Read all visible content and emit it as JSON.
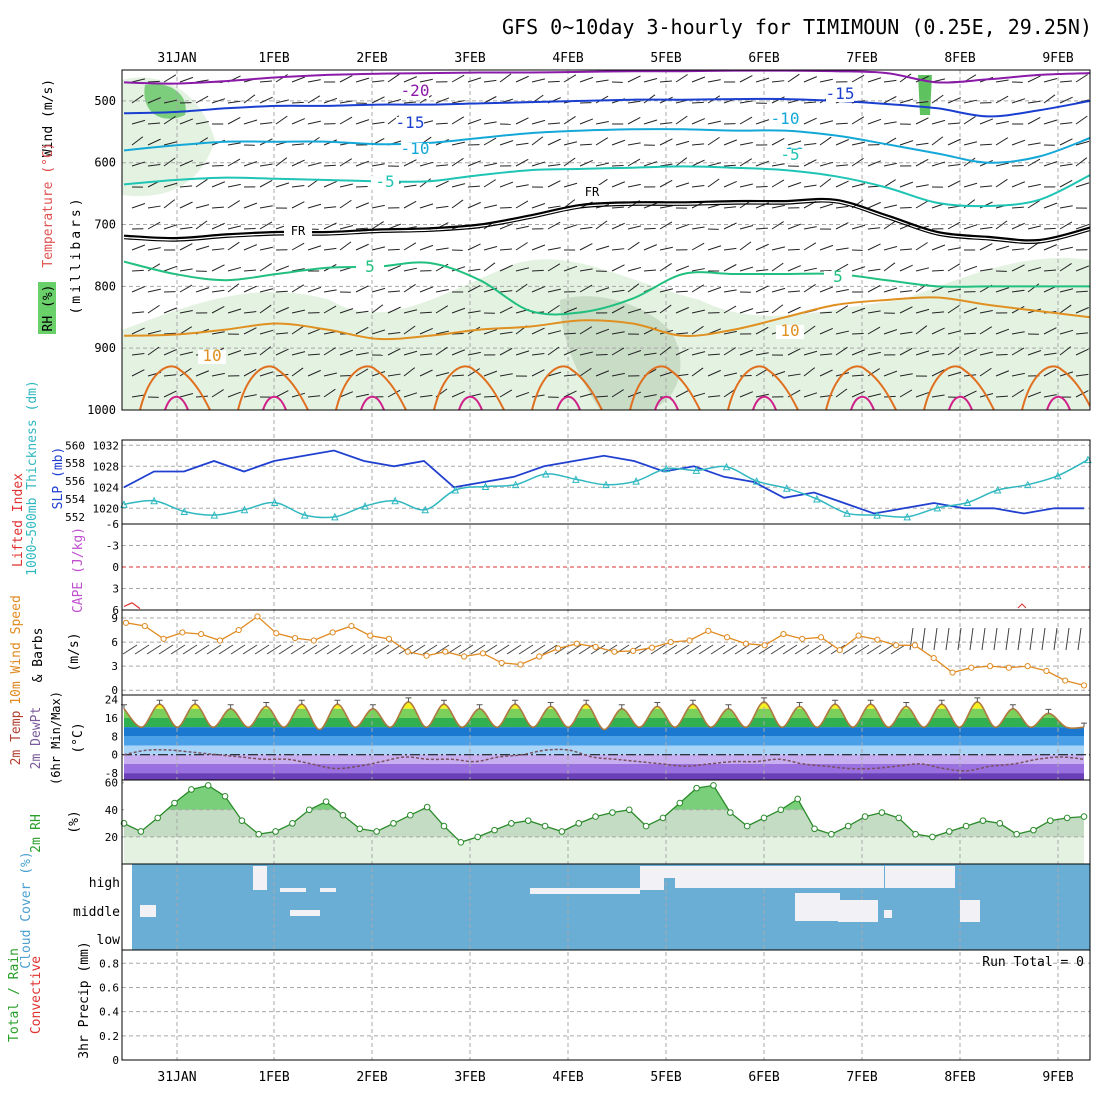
{
  "header": {
    "title": "GFS 0~10day 3-hourly for TIMIMOUN (0.25E, 29.25N)"
  },
  "dates": [
    "31JAN",
    "1FEB",
    "2FEB",
    "3FEB",
    "4FEB",
    "5FEB",
    "6FEB",
    "7FEB",
    "8FEB",
    "9FEB"
  ],
  "chart_data": [
    {
      "type": "line",
      "title": "Upper air cross-section",
      "ylabel": "(millibars)",
      "ylabel_parts": [
        "Wind (m/s)",
        "Temperature (°C)",
        "RH (%)"
      ],
      "yticks": [
        500,
        600,
        700,
        800,
        900,
        1000
      ],
      "ylim": [
        1000,
        450
      ],
      "contour_labels": [
        "-20",
        "-15",
        "-15",
        "-10",
        "-10",
        "-10",
        "-5",
        "-5",
        "FR",
        "FR",
        "5",
        "5",
        "10",
        "10"
      ],
      "series": [
        {
          "name": "-20",
          "color": "#8a1aa8",
          "values": [
            470,
            472,
            468,
            462,
            458,
            456,
            455,
            454,
            454,
            453,
            452,
            452,
            451,
            451,
            452,
            455,
            470,
            465,
            458,
            455
          ]
        },
        {
          "name": "-15",
          "color": "#1a3fd0",
          "values": [
            520,
            518,
            512,
            508,
            508,
            506,
            506,
            504,
            502,
            500,
            498,
            498,
            497,
            497,
            500,
            505,
            512,
            525,
            515,
            500
          ]
        },
        {
          "name": "-10",
          "color": "#14a8d8",
          "values": [
            580,
            572,
            566,
            566,
            566,
            570,
            568,
            560,
            552,
            548,
            546,
            546,
            548,
            548,
            556,
            570,
            585,
            600,
            590,
            560
          ]
        },
        {
          "name": "-5",
          "color": "#1ec4b4",
          "values": [
            635,
            628,
            624,
            626,
            628,
            630,
            630,
            620,
            612,
            610,
            608,
            606,
            608,
            612,
            622,
            640,
            665,
            670,
            660,
            620
          ]
        },
        {
          "name": "FR",
          "color": "#000000",
          "values": [
            718,
            722,
            716,
            712,
            712,
            708,
            706,
            700,
            685,
            668,
            664,
            664,
            662,
            662,
            660,
            685,
            712,
            720,
            725,
            705
          ]
        },
        {
          "name": "5",
          "color": "#22c080",
          "values": [
            760,
            780,
            790,
            780,
            770,
            768,
            762,
            790,
            840,
            842,
            820,
            780,
            780,
            780,
            780,
            790,
            800,
            800,
            800,
            800
          ]
        },
        {
          "name": "10",
          "color": "#e09020",
          "values": [
            880,
            878,
            870,
            860,
            870,
            885,
            880,
            870,
            865,
            855,
            860,
            880,
            870,
            850,
            830,
            822,
            818,
            830,
            840,
            850
          ]
        }
      ]
    },
    {
      "type": "line",
      "title": "Thickness and SLP",
      "ylabel_left": "1000~500mb Thickness (dm)",
      "ylabel_right": "SLP (mb)",
      "yticks_left": [
        552,
        554,
        556,
        558,
        560
      ],
      "yticks_right": [
        1020,
        1024,
        1028,
        1032
      ],
      "ylim_right": [
        1017,
        1033
      ],
      "series": [
        {
          "name": "SLP",
          "color": "#2040d0",
          "values": [
            1024,
            1027,
            1027,
            1029,
            1027,
            1029,
            1030,
            1031,
            1029,
            1028,
            1029,
            1024,
            1025,
            1026,
            1028,
            1029,
            1030,
            1029,
            1027,
            1028,
            1026,
            1025,
            1022,
            1023,
            1021,
            1019,
            1020,
            1021,
            1020,
            1020,
            1019,
            1020,
            1020
          ]
        },
        {
          "name": "Thickness",
          "color": "#30b8c0",
          "values": [
            553.4,
            553.8,
            552.6,
            552.2,
            552.8,
            553.6,
            552.2,
            552.0,
            553.2,
            553.8,
            552.8,
            555.0,
            555.4,
            555.6,
            556.8,
            556.2,
            555.6,
            556.0,
            557.4,
            557.2,
            557.6,
            556.0,
            555.2,
            554.0,
            552.4,
            552.2,
            552.0,
            553.0,
            553.6,
            555.0,
            555.6,
            556.6,
            558.4
          ]
        }
      ]
    },
    {
      "type": "line",
      "title": "CAPE and Lifted Index",
      "ylabel_parts": [
        "Lifted Index",
        "CAPE (J/kg)"
      ],
      "yticks": [
        "-6",
        "-3",
        "0",
        "3",
        "6"
      ],
      "ylim": [
        -6,
        6
      ],
      "series": [
        {
          "name": "Lifted Index",
          "color": "#e03030",
          "values": [
            5.5,
            5.0,
            5.8
          ]
        }
      ]
    },
    {
      "type": "line",
      "title": "10m Wind Speed & Barbs",
      "ylabel_parts": [
        "10m Wind Speed",
        "& Barbs",
        "(m/s)"
      ],
      "yticks": [
        0,
        3,
        6,
        9
      ],
      "ylim": [
        0,
        10
      ],
      "series": [
        {
          "name": "Speed",
          "color": "#e08a20",
          "values": [
            8.4,
            8.0,
            6.4,
            7.2,
            7.0,
            6.2,
            7.5,
            9.2,
            7.1,
            6.5,
            6.2,
            7.2,
            8.0,
            6.8,
            6.4,
            4.8,
            4.3,
            4.8,
            4.2,
            4.6,
            3.4,
            3.2,
            4.2,
            5.2,
            5.8,
            5.4,
            4.8,
            4.9,
            5.3,
            6.0,
            6.2,
            7.4,
            6.6,
            5.8,
            5.6,
            7.0,
            6.4,
            6.6,
            5.0,
            6.8,
            6.3,
            5.6,
            5.6,
            4.0,
            2.2,
            2.8,
            3.0,
            2.8,
            3.0,
            2.4,
            1.2,
            0.6
          ]
        }
      ]
    },
    {
      "type": "area",
      "title": "2m Temp and DewPt",
      "ylabel_parts": [
        "2m Temp",
        "2m DewPt",
        "(6hr Min/Max)",
        "(°C)"
      ],
      "yticks": [
        -8,
        0,
        8,
        16,
        24
      ],
      "ylim": [
        -11,
        26
      ],
      "series": [
        {
          "name": "2m Temp",
          "color": "#b07840",
          "values": [
            20,
            12,
            22,
            12,
            22,
            12,
            20,
            12,
            21,
            12,
            22,
            11,
            22,
            12,
            20,
            12,
            23,
            12,
            22,
            12,
            20,
            12,
            22,
            12,
            21,
            12,
            22,
            11,
            20,
            12,
            21,
            12,
            22,
            12,
            20,
            12,
            23,
            12,
            21,
            12,
            22,
            12,
            22,
            12,
            21,
            12,
            22,
            12,
            23,
            12,
            20,
            12,
            18,
            12,
            12
          ]
        },
        {
          "name": "2m DewPt",
          "color": "#7a5a9a",
          "values": [
            0,
            2,
            2,
            1,
            0,
            -1,
            -2,
            -2,
            -4,
            -6,
            -5,
            -3,
            -1,
            -2,
            -2,
            -3,
            -1,
            0,
            2,
            2,
            -1,
            -2,
            -3,
            -4,
            -5,
            -4,
            -3,
            -3,
            -2,
            -4,
            -5,
            -6,
            -6,
            -5,
            -4,
            -6,
            -7,
            -5,
            -4,
            -2,
            -1,
            -2
          ]
        }
      ]
    },
    {
      "type": "area",
      "title": "2m RH",
      "ylabel": "2m RH (%)",
      "yticks": [
        20,
        40,
        60
      ],
      "ylim": [
        0,
        62
      ],
      "series": [
        {
          "name": "2m RH",
          "color": "#2a8a2a",
          "values": [
            30,
            24,
            34,
            45,
            55,
            58,
            50,
            32,
            22,
            24,
            30,
            40,
            46,
            36,
            26,
            24,
            30,
            36,
            42,
            28,
            16,
            20,
            25,
            30,
            32,
            28,
            24,
            30,
            35,
            38,
            40,
            28,
            34,
            45,
            56,
            58,
            38,
            28,
            34,
            40,
            48,
            26,
            22,
            28,
            35,
            38,
            34,
            22,
            20,
            24,
            28,
            32,
            30,
            22,
            25,
            32,
            34,
            35
          ]
        }
      ]
    },
    {
      "type": "heatmap",
      "title": "Cloud Cover",
      "ylabel": "Cloud Cover (%)",
      "yticks": [
        "high",
        "middle",
        "low"
      ]
    },
    {
      "type": "bar",
      "title": "3hr Precip",
      "ylabel_parts": [
        "Total / Rain",
        "Convective",
        "3hr Precip (mm)"
      ],
      "yticks": [
        "0",
        "0.2",
        "0.4",
        "0.6",
        "0.8"
      ],
      "ylim": [
        0,
        0.9
      ],
      "annotation": "Run Total = 0",
      "values": []
    }
  ]
}
